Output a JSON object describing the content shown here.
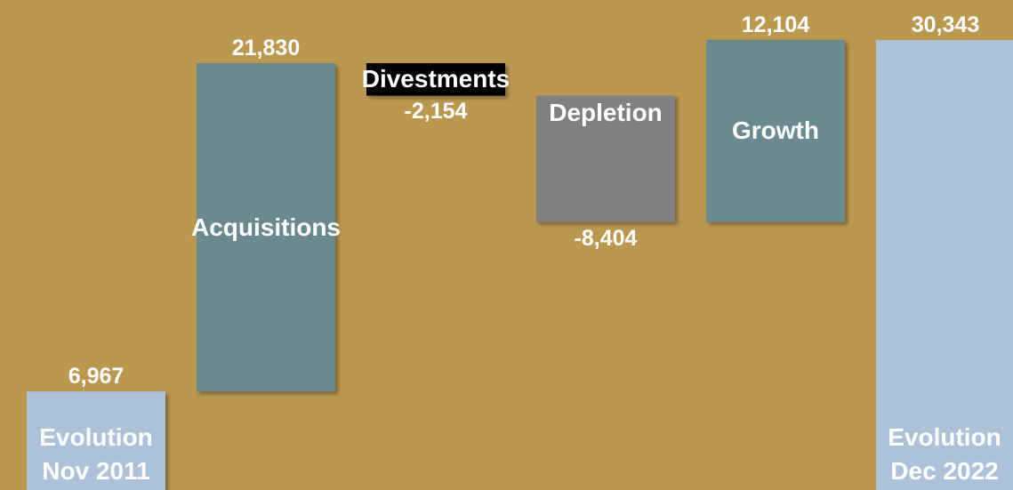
{
  "chart_data": {
    "type": "waterfall",
    "categories": [
      "Evolution Nov 2011",
      "Acquisitions",
      "Divestments",
      "Depletion",
      "Growth",
      "Evolution Dec 2022"
    ],
    "measure": [
      "absolute",
      "relative",
      "relative",
      "relative",
      "relative",
      "total"
    ],
    "values": [
      6967,
      21830,
      -2154,
      -8404,
      12104,
      30343
    ],
    "value_labels": [
      "6,967",
      "21,830",
      "-2,154",
      "-8,404",
      "12,104",
      "30,343"
    ],
    "colors": [
      "#adc2d8",
      "#6a8a90",
      "#000000",
      "#808080",
      "#6a8a90",
      "#adc2d8"
    ],
    "background": "#bb9850",
    "ylim": [
      0,
      33000
    ]
  }
}
